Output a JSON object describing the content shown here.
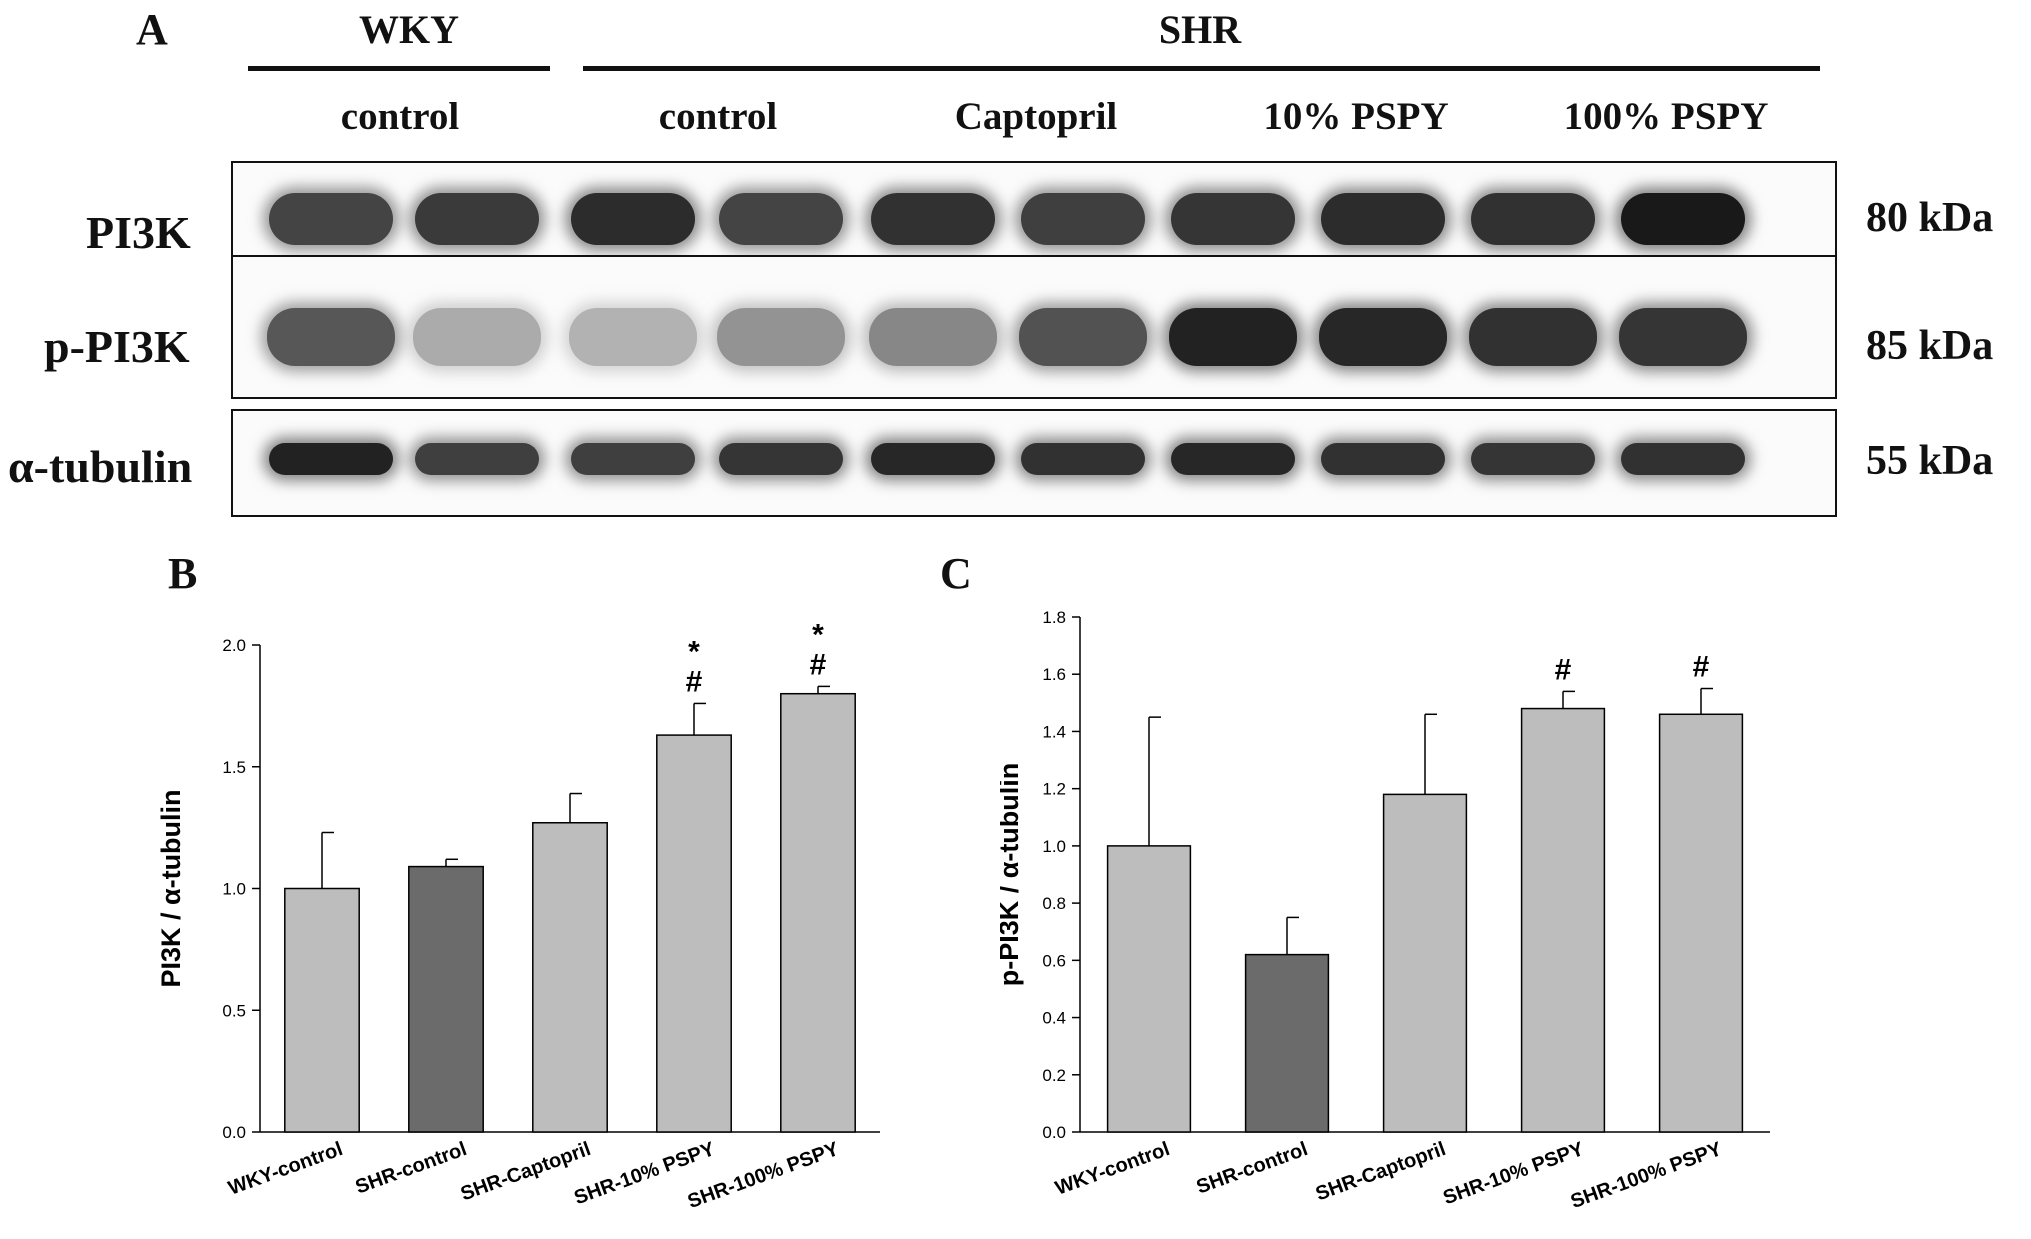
{
  "panel_a": {
    "letter": "A",
    "groups": {
      "wky": "WKY",
      "shr": "SHR"
    },
    "conditions": [
      "control",
      "control",
      "Captopril",
      "10% PSPY",
      "100% PSPY"
    ],
    "rows": [
      {
        "label": "PI3K",
        "kda": "80 kDa",
        "intensity": [
          0.78,
          0.82,
          0.88,
          0.78,
          0.86,
          0.8,
          0.84,
          0.88,
          0.86,
          0.96
        ]
      },
      {
        "label": "p-PI3K",
        "kda": "85 kDa",
        "intensity": [
          0.7,
          0.35,
          0.32,
          0.45,
          0.5,
          0.72,
          0.92,
          0.9,
          0.86,
          0.84
        ]
      },
      {
        "label": "α-tubulin",
        "kda": "55 kDa",
        "intensity": [
          0.92,
          0.8,
          0.8,
          0.84,
          0.9,
          0.86,
          0.9,
          0.86,
          0.84,
          0.86
        ]
      }
    ]
  },
  "chart_data": [
    {
      "panel": "B",
      "type": "bar",
      "categories": [
        "WKY-control",
        "SHR-control",
        "SHR-Captopril",
        "SHR-10% PSPY",
        "SHR-100% PSPY"
      ],
      "values": [
        1.0,
        1.09,
        1.27,
        1.63,
        1.8
      ],
      "errors": [
        0.23,
        0.03,
        0.12,
        0.13,
        0.03
      ],
      "annotations": [
        "",
        "",
        "",
        "*\n#",
        "*\n#"
      ],
      "highlight_index": 1,
      "title": "",
      "xlabel": "",
      "ylabel": "PI3K / α-tubulin",
      "ylim": [
        0,
        2.0
      ],
      "yticks": [
        "0.0",
        "0.5",
        "1.0",
        "1.5",
        "2.0"
      ],
      "ytick_values": [
        0,
        0.5,
        1.0,
        1.5,
        2.0
      ],
      "grid": false,
      "colors": {
        "bar": "#bdbdbd",
        "highlight": "#6b6b6b",
        "edge": "#000000"
      }
    },
    {
      "panel": "C",
      "type": "bar",
      "categories": [
        "WKY-control",
        "SHR-control",
        "SHR-Captopril",
        "SHR-10% PSPY",
        "SHR-100% PSPY"
      ],
      "values": [
        1.0,
        0.62,
        1.18,
        1.48,
        1.46
      ],
      "errors": [
        0.45,
        0.13,
        0.28,
        0.06,
        0.09
      ],
      "annotations": [
        "",
        "",
        "",
        "#",
        "#"
      ],
      "highlight_index": 1,
      "title": "",
      "xlabel": "",
      "ylabel": "p-PI3K / α-tubulin",
      "ylim": [
        0,
        1.8
      ],
      "yticks": [
        "0.0",
        "0.2",
        "0.4",
        "0.6",
        "0.8",
        "1.0",
        "1.2",
        "1.4",
        "1.6",
        "1.8"
      ],
      "ytick_values": [
        0,
        0.2,
        0.4,
        0.6,
        0.8,
        1.0,
        1.2,
        1.4,
        1.6,
        1.8
      ],
      "grid": false,
      "colors": {
        "bar": "#bdbdbd",
        "highlight": "#6b6b6b",
        "edge": "#000000"
      }
    }
  ]
}
